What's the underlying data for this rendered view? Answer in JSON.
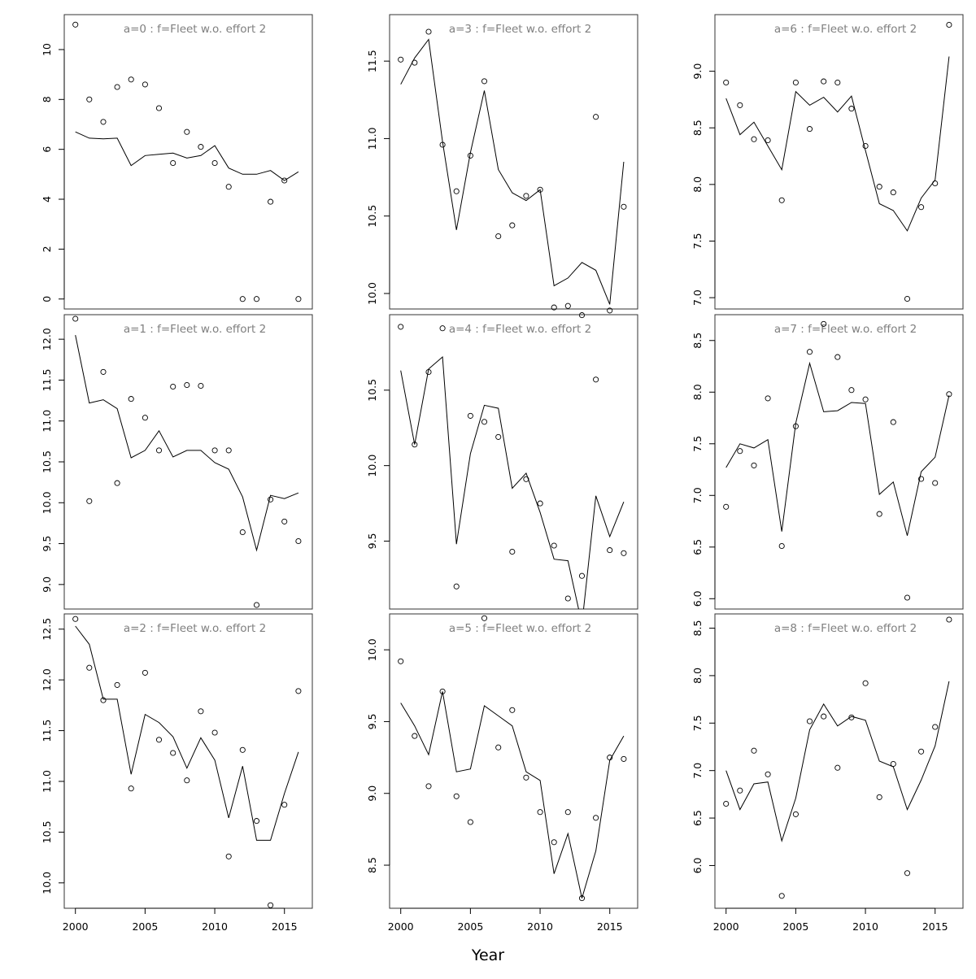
{
  "chart_data": {
    "type": "scatter",
    "layout": "3x3 grid, panels filled column-wise",
    "xlabel": "Year",
    "x_ticks": [
      2000,
      2005,
      2010,
      2015
    ],
    "years": [
      2000,
      2001,
      2002,
      2003,
      2004,
      2005,
      2006,
      2007,
      2008,
      2009,
      2010,
      2011,
      2012,
      2013,
      2014,
      2015,
      2016
    ],
    "series": [
      "observed (points)",
      "fitted (line)"
    ],
    "panels": [
      {
        "title": "a=0  :  f=Fleet w.o. effort 2",
        "ylim": [
          -0.4,
          11.4
        ],
        "y_ticks": [
          0,
          2,
          4,
          6,
          8,
          10
        ],
        "observed": [
          11.0,
          8.0,
          7.1,
          8.5,
          8.8,
          8.6,
          7.65,
          5.45,
          6.7,
          6.1,
          5.45,
          4.5,
          0.0,
          0.0,
          3.9,
          4.75,
          0.0
        ],
        "fitted": [
          6.7,
          6.45,
          6.42,
          6.45,
          5.35,
          5.75,
          5.8,
          5.85,
          5.65,
          5.75,
          6.15,
          5.25,
          5.0,
          5.0,
          5.15,
          4.75,
          5.1
        ]
      },
      {
        "title": "a=1  :  f=Fleet w.o. effort 2",
        "ylim": [
          8.7,
          12.3
        ],
        "y_ticks": [
          9.0,
          9.5,
          10.0,
          10.5,
          11.0,
          11.5,
          12.0
        ],
        "observed": [
          12.25,
          10.02,
          11.6,
          10.24,
          11.27,
          11.04,
          10.64,
          11.42,
          11.44,
          11.43,
          10.64,
          10.64,
          9.64,
          8.75,
          10.04,
          9.77,
          9.53
        ],
        "fitted": [
          12.05,
          11.22,
          11.26,
          11.15,
          10.55,
          10.64,
          10.88,
          10.56,
          10.64,
          10.64,
          10.49,
          10.41,
          10.07,
          9.42,
          10.09,
          10.05,
          10.12
        ]
      },
      {
        "title": "a=2  :  f=Fleet w.o. effort 2",
        "ylim": [
          9.75,
          12.65
        ],
        "y_ticks": [
          10.0,
          10.5,
          11.0,
          11.5,
          12.0,
          12.5
        ],
        "observed": [
          12.6,
          12.12,
          11.8,
          11.95,
          10.93,
          12.07,
          11.41,
          11.28,
          11.01,
          11.69,
          11.48,
          10.26,
          11.31,
          10.61,
          9.78,
          10.77,
          11.89
        ],
        "fitted": [
          12.53,
          12.35,
          11.81,
          11.81,
          11.07,
          11.66,
          11.58,
          11.44,
          11.13,
          11.43,
          11.21,
          10.64,
          11.15,
          10.42,
          10.42,
          10.88,
          11.29
        ]
      },
      {
        "title": "a=3  :  f=Fleet w.o. effort 2",
        "ylim": [
          9.9,
          11.8
        ],
        "y_ticks": [
          10.0,
          10.5,
          11.0,
          11.5
        ],
        "observed": [
          11.51,
          11.49,
          11.69,
          10.96,
          10.66,
          10.89,
          11.37,
          10.37,
          10.44,
          10.63,
          10.67,
          9.91,
          9.92,
          9.86,
          11.14,
          9.89,
          10.56
        ],
        "fitted": [
          11.35,
          11.52,
          11.64,
          10.98,
          10.41,
          10.91,
          11.31,
          10.8,
          10.65,
          10.6,
          10.67,
          10.05,
          10.1,
          10.2,
          10.15,
          9.93,
          10.85
        ]
      },
      {
        "title": "a=4  :  f=Fleet w.o. effort 2",
        "ylim": [
          9.05,
          11.0
        ],
        "y_ticks": [
          9.5,
          10.0,
          10.5
        ],
        "observed": [
          10.92,
          10.14,
          10.62,
          10.91,
          9.2,
          10.33,
          10.29,
          10.19,
          9.43,
          9.91,
          9.75,
          9.47,
          9.12,
          9.27,
          10.57,
          9.44,
          9.42
        ],
        "fitted": [
          10.63,
          10.14,
          10.64,
          10.72,
          9.48,
          10.08,
          10.4,
          10.38,
          9.85,
          9.95,
          9.69,
          9.38,
          9.37,
          8.95,
          9.8,
          9.53,
          9.76
        ]
      },
      {
        "title": "a=5  :  f=Fleet w.o. effort 2",
        "ylim": [
          8.2,
          10.25
        ],
        "y_ticks": [
          8.5,
          9.0,
          9.5,
          10.0
        ],
        "observed": [
          9.92,
          9.4,
          9.05,
          9.71,
          8.98,
          8.8,
          10.22,
          9.32,
          9.58,
          9.11,
          8.87,
          8.66,
          8.87,
          8.27,
          8.83,
          9.25,
          9.24
        ],
        "fitted": [
          9.63,
          9.47,
          9.27,
          9.71,
          9.15,
          9.17,
          9.61,
          9.54,
          9.47,
          9.15,
          9.09,
          8.44,
          8.72,
          8.27,
          8.6,
          9.23,
          9.4
        ]
      },
      {
        "title": "a=6  :  f=Fleet w.o. effort 2",
        "ylim": [
          6.9,
          9.5
        ],
        "y_ticks": [
          7.0,
          7.5,
          8.0,
          8.5,
          9.0
        ],
        "observed": [
          8.9,
          8.7,
          8.4,
          8.39,
          7.86,
          8.9,
          8.49,
          8.91,
          8.9,
          8.67,
          8.34,
          7.98,
          7.93,
          6.99,
          7.8,
          8.01,
          9.41
        ],
        "fitted": [
          8.76,
          8.44,
          8.55,
          8.34,
          8.13,
          8.82,
          8.7,
          8.77,
          8.64,
          8.78,
          8.3,
          7.83,
          7.77,
          7.59,
          7.88,
          8.04,
          9.13
        ]
      },
      {
        "title": "a=7  :  f=Fleet w.o. effort 2",
        "ylim": [
          5.9,
          8.75
        ],
        "y_ticks": [
          6.0,
          6.5,
          7.0,
          7.5,
          8.0,
          8.5
        ],
        "observed": [
          6.89,
          7.43,
          7.29,
          7.94,
          6.51,
          7.67,
          8.39,
          8.66,
          8.34,
          8.02,
          7.93,
          6.82,
          7.71,
          6.01,
          7.16,
          7.12,
          7.98
        ],
        "fitted": [
          7.27,
          7.5,
          7.46,
          7.54,
          6.65,
          7.7,
          8.28,
          7.81,
          7.82,
          7.9,
          7.89,
          7.01,
          7.13,
          6.61,
          7.23,
          7.37,
          7.97
        ]
      },
      {
        "title": "a=8  :  f=Fleet w.o. effort 2",
        "ylim": [
          5.55,
          8.65
        ],
        "y_ticks": [
          6.0,
          6.5,
          7.0,
          7.5,
          8.0,
          8.5
        ],
        "observed": [
          6.65,
          6.79,
          7.21,
          6.96,
          5.68,
          6.54,
          7.52,
          7.57,
          7.03,
          7.56,
          7.92,
          6.72,
          7.07,
          5.92,
          7.2,
          7.46,
          8.59
        ],
        "fitted": [
          7.0,
          6.59,
          6.86,
          6.88,
          6.26,
          6.71,
          7.43,
          7.7,
          7.47,
          7.57,
          7.53,
          7.1,
          7.04,
          6.59,
          6.9,
          7.26,
          7.94
        ]
      }
    ]
  }
}
